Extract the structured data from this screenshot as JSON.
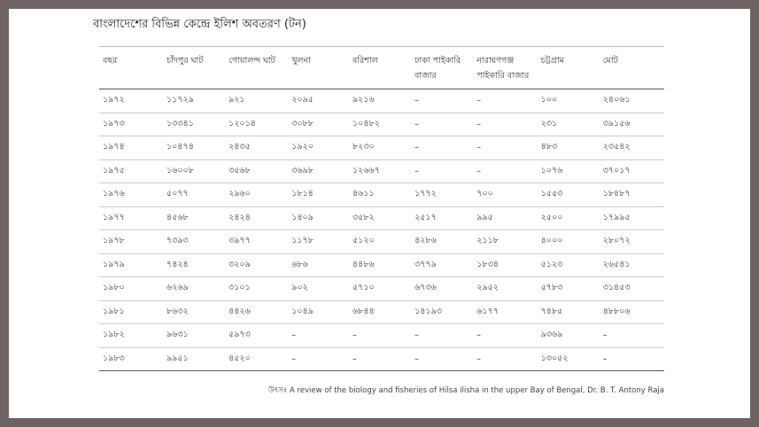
{
  "title": "বাংলাদেশের বিভিন্ন কেন্দ্রে ইলিশ অবতরণ (টন)",
  "table": {
    "headers": [
      "বছর",
      "চাঁদপুর ঘাট",
      "গোয়ালন্দ ঘাট",
      "খুলনা",
      "বরিশাল",
      "ঢাকা পাইকারি বাজার",
      "নারায়ণগঞ্জ পাইকারি বাজার",
      "চট্টগ্রাম",
      "মোট"
    ],
    "rows": [
      [
        "১৯৭২",
        "১১৭২৯",
        "৯২১",
        "২০৯৫",
        "৯২১৬",
        "–",
        "–",
        "১০০",
        "২৪০৬১"
      ],
      [
        "১৯৭৩",
        "১৩৩৪১",
        "১২০১৪",
        "৩০৮৮",
        "১০৪৮২",
        "–",
        "–",
        "২৩১",
        "৩৯১৫৬"
      ],
      [
        "১৯৭৪",
        "১০৪৭৪",
        "২৪৩৫",
        "১৯২০",
        "৮২৩০",
        "–",
        "–",
        "৪৮৩",
        "২৩৫৪২"
      ],
      [
        "১৯৭৫",
        "১৬০০৮",
        "৩৫৬৮",
        "৩৬৯৮",
        "১২৬৬৭",
        "–",
        "–",
        "১০৭৬",
        "৩৭০১৭"
      ],
      [
        "১৯৭৬",
        "৫০৭৭",
        "২৯৬০",
        "১৮১৪",
        "৪৬১১",
        "১৭৭২",
        "৭০০",
        "১৫৫৩",
        "১৮৪৮৭"
      ],
      [
        "১৯৭৭",
        "৪৫৬৮",
        "২৪২৪",
        "১৪০৯",
        "৩৫৮২",
        "২৫১৭",
        "৯৯৫",
        "২৫০০",
        "১৭৯৯৫"
      ],
      [
        "১৯৭৮",
        "৭৩৯৩",
        "৩৯৭৭",
        "১১৭৮",
        "৫১২০",
        "৪২৮৬",
        "২১১৮",
        "৪০০০",
        "২৮০৭২"
      ],
      [
        "১৯৭৯",
        "৭৪২৪",
        "৩২০৯",
        "৬৮৬",
        "৪৪৮৬",
        "৩৭৭৯",
        "১৮৩৪",
        "৫১২৩",
        "২৬৫৪১"
      ],
      [
        "১৯৮০",
        "৬২৬৯",
        "৩১০১",
        "৯০২",
        "৫৭১০",
        "৬৭৩৬",
        "২৯৫২",
        "৫৭৮৩",
        "৩১৪৫৩"
      ],
      [
        "১৯৮১",
        "৮৬৩২",
        "৪৪২৬",
        "১০৪৯",
        "৬৮৪৪",
        "১৪১৯৩",
        "৬১৭৭",
        "৭৪৮৫",
        "৪৮৮০৬"
      ],
      [
        "১৯৮২",
        "৯৬৩১",
        "৫৯৭৩",
        "–",
        "–",
        "–",
        "–",
        "৯৩৬৯",
        "–"
      ],
      [
        "১৯৮৩",
        "৯৯৫১",
        "৪৫২০",
        "–",
        "–",
        "–",
        "–",
        "১৩০৫২",
        "–"
      ]
    ]
  },
  "source": "উৎসঃ A review of the biology and fisheries of Hilsa ilisha in the upper Bay of Bengal, Dr. B. T. Antony Raja"
}
